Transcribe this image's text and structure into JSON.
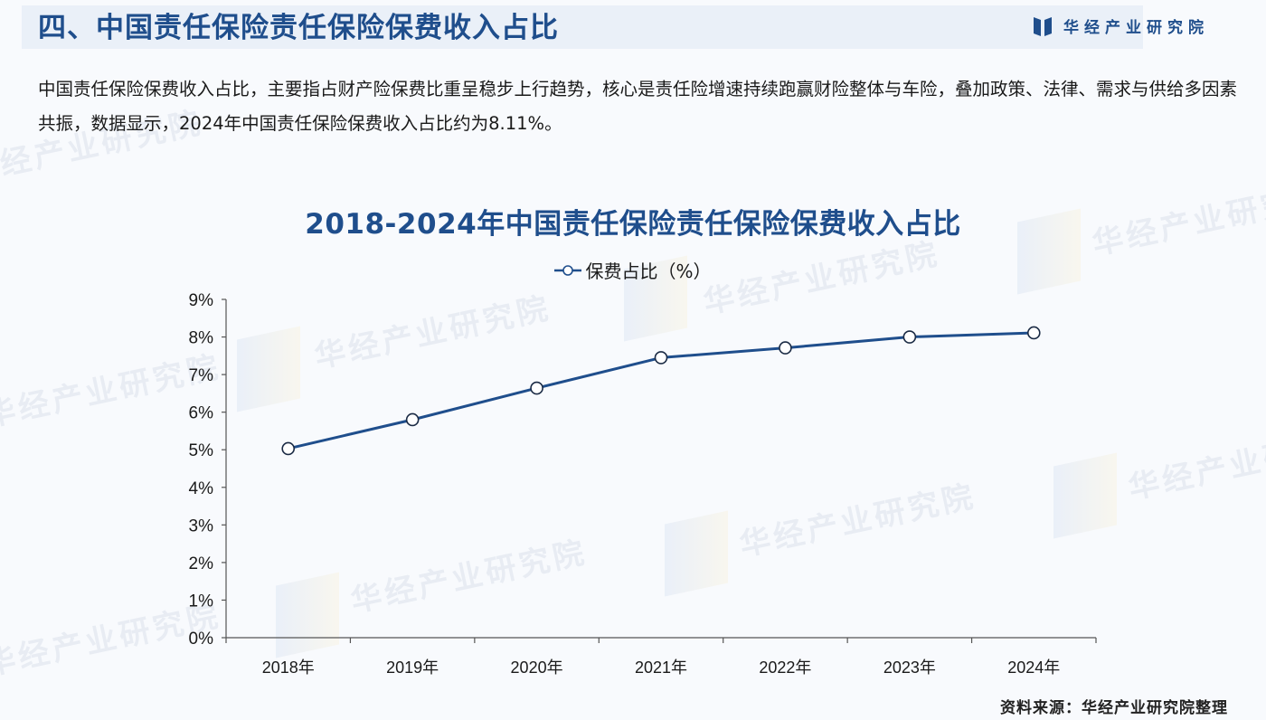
{
  "header": {
    "title": "四、中国责任保险责任保险保费收入占比",
    "brand_name": "华经产业研究院",
    "brand_icon": "book-logo-icon"
  },
  "intro": {
    "text": "中国责任保险保费收入占比，主要指占财产险保费比重呈稳步上行趋势，核心是责任险增速持续跑赢财险整体与车险，叠加政策、法律、需求与供给多因素共振，数据显示，2024年中国责任保险保费收入占比约为8.11%。"
  },
  "watermark": {
    "text": "华经产业研究院"
  },
  "chart_data": {
    "type": "line",
    "title": "2018-2024年中国责任保险责任保险保费收入占比",
    "categories": [
      "2018年",
      "2019年",
      "2020年",
      "2021年",
      "2022年",
      "2023年",
      "2024年"
    ],
    "series": [
      {
        "name": "保费占比（%）",
        "values": [
          5.03,
          5.8,
          6.64,
          7.45,
          7.71,
          8.0,
          8.11
        ],
        "color": "#1f4e8c",
        "marker": "hollow-circle"
      }
    ],
    "xlabel": "",
    "ylabel": "",
    "ylim": [
      0,
      9
    ],
    "yticks": [
      "0%",
      "1%",
      "2%",
      "3%",
      "4%",
      "5%",
      "6%",
      "7%",
      "8%",
      "9%"
    ],
    "grid": false,
    "legend_position": "top"
  },
  "footer": {
    "source": "资料来源：华经产业研究院整理"
  },
  "colors": {
    "accent": "#1f4e8c",
    "title_band": "#eaf0f8",
    "background": "#f8fafd",
    "axis": "#555555"
  }
}
